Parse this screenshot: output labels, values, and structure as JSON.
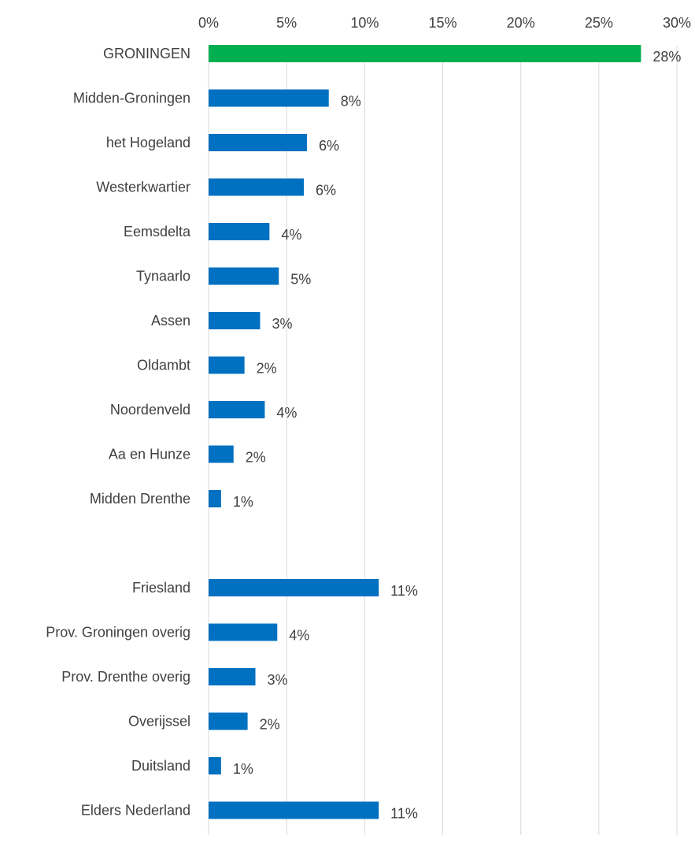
{
  "chart_data": {
    "type": "bar",
    "orientation": "horizontal",
    "title": "",
    "xlabel": "",
    "ylabel": "",
    "xlim": [
      0,
      30
    ],
    "x_ticks": [
      "0%",
      "5%",
      "10%",
      "15%",
      "20%",
      "25%",
      "30%"
    ],
    "x_tick_values": [
      0,
      5,
      10,
      15,
      20,
      25,
      30
    ],
    "axis_position": "top",
    "grid": true,
    "legend": "none",
    "colors": {
      "highlight": "#00b050",
      "default": "#0070c0",
      "grid": "#d9d9d9",
      "text": "#404040"
    },
    "categories": [
      "GRONINGEN",
      "Midden-Groningen",
      "het Hogeland",
      "Westerkwartier",
      "Eemsdelta",
      "Tynaarlo",
      "Assen",
      "Oldambt",
      "Noordenveld",
      "Aa en Hunze",
      "Midden Drenthe",
      "",
      "Friesland",
      "Prov. Groningen overig",
      "Prov. Drenthe overig",
      "Overijssel",
      "Duitsland",
      "Elders Nederland"
    ],
    "values": [
      27.7,
      7.7,
      6.3,
      6.1,
      3.9,
      4.5,
      3.3,
      2.3,
      3.6,
      1.6,
      0.8,
      null,
      10.9,
      4.4,
      3.0,
      2.5,
      0.8,
      10.9
    ],
    "value_labels": [
      "28%",
      "8%",
      "6%",
      "6%",
      "4%",
      "5%",
      "3%",
      "2%",
      "4%",
      "2%",
      "1%",
      "",
      "11%",
      "4%",
      "3%",
      "2%",
      "1%",
      "11%"
    ],
    "highlight_category": "GRONINGEN"
  }
}
